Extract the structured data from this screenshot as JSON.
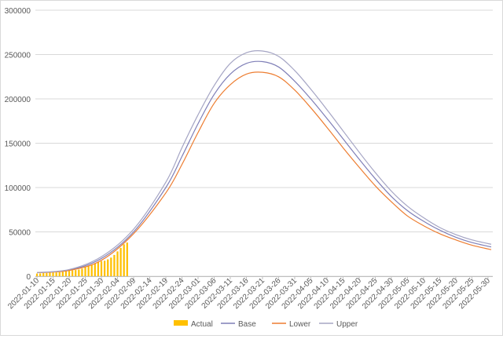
{
  "chart_data": {
    "type": "bar+line",
    "title": "",
    "xlabel": "",
    "ylabel": "",
    "ylim": [
      0,
      300000
    ],
    "y_ticks": [
      0,
      50000,
      100000,
      150000,
      200000,
      250000,
      300000
    ],
    "y_tick_labels": [
      "0",
      "50000",
      "100000",
      "150000",
      "200000",
      "250000",
      "300000"
    ],
    "x_start": "2022-01-10",
    "x_end": "2022-05-31",
    "x_tick_labels": [
      "2022-01-10",
      "2022-01-15",
      "2022-01-20",
      "2022-01-25",
      "2022-01-30",
      "2022-02-04",
      "2022-02-09",
      "2022-02-14",
      "2022-02-19",
      "2022-02-24",
      "2022-03-01",
      "2022-03-06",
      "2022-03-11",
      "2022-03-16",
      "2022-03-21",
      "2022-03-26",
      "2022-03-31",
      "2022-04-05",
      "2022-04-10",
      "2022-04-15",
      "2022-04-20",
      "2022-04-25",
      "2022-04-30",
      "2022-05-05",
      "2022-05-10",
      "2022-05-15",
      "2022-05-20",
      "2022-05-25",
      "2022-05-30"
    ],
    "grid": "horizontal",
    "legend_position": "bottom",
    "actual": {
      "name": "Actual",
      "color": "#ffc000",
      "dates": [
        "2022-01-10",
        "2022-01-11",
        "2022-01-12",
        "2022-01-13",
        "2022-01-14",
        "2022-01-15",
        "2022-01-16",
        "2022-01-17",
        "2022-01-18",
        "2022-01-19",
        "2022-01-20",
        "2022-01-21",
        "2022-01-22",
        "2022-01-23",
        "2022-01-24",
        "2022-01-25",
        "2022-01-26",
        "2022-01-27",
        "2022-01-28",
        "2022-01-29",
        "2022-01-30",
        "2022-01-31",
        "2022-02-01",
        "2022-02-02",
        "2022-02-03",
        "2022-02-04",
        "2022-02-05",
        "2022-02-06",
        "2022-02-07"
      ],
      "values": [
        3000,
        3200,
        3500,
        3700,
        4000,
        4200,
        4300,
        4500,
        5000,
        5400,
        6000,
        6500,
        7000,
        7500,
        8500,
        11000,
        12000,
        13000,
        14500,
        16000,
        17000,
        17500,
        19000,
        21000,
        24000,
        28000,
        32000,
        36000,
        38000
      ]
    },
    "series": [
      {
        "name": "Base",
        "color": "#7f7fb7",
        "x": [
          "2022-01-10",
          "2022-01-20",
          "2022-01-30",
          "2022-02-09",
          "2022-02-19",
          "2022-02-24",
          "2022-03-01",
          "2022-03-06",
          "2022-03-11",
          "2022-03-16",
          "2022-03-21",
          "2022-03-26",
          "2022-03-31",
          "2022-04-05",
          "2022-04-10",
          "2022-04-15",
          "2022-04-20",
          "2022-04-25",
          "2022-04-30",
          "2022-05-05",
          "2022-05-10",
          "2022-05-15",
          "2022-05-20",
          "2022-05-25",
          "2022-05-31"
        ],
        "values": [
          4000,
          7000,
          20000,
          50000,
          100000,
          135000,
          172000,
          205000,
          228000,
          240000,
          242000,
          236000,
          220000,
          200000,
          178000,
          155000,
          132000,
          110000,
          90000,
          74000,
          62000,
          52000,
          44000,
          38000,
          33000
        ]
      },
      {
        "name": "Lower",
        "color": "#ed7d31",
        "x": [
          "2022-01-10",
          "2022-01-20",
          "2022-01-30",
          "2022-02-09",
          "2022-02-19",
          "2022-02-24",
          "2022-03-01",
          "2022-03-06",
          "2022-03-11",
          "2022-03-16",
          "2022-03-21",
          "2022-03-26",
          "2022-03-31",
          "2022-04-05",
          "2022-04-10",
          "2022-04-15",
          "2022-04-20",
          "2022-04-25",
          "2022-04-30",
          "2022-05-05",
          "2022-05-10",
          "2022-05-15",
          "2022-05-20",
          "2022-05-25",
          "2022-05-31"
        ],
        "values": [
          4000,
          6500,
          18000,
          48000,
          94000,
          126000,
          162000,
          195000,
          216000,
          228000,
          230000,
          225000,
          210000,
          190000,
          168000,
          145000,
          123000,
          102000,
          84000,
          68000,
          57000,
          48000,
          41000,
          35000,
          30000
        ]
      },
      {
        "name": "Upper",
        "color": "#a5a5c4",
        "x": [
          "2022-01-10",
          "2022-01-20",
          "2022-01-30",
          "2022-02-09",
          "2022-02-19",
          "2022-02-24",
          "2022-03-01",
          "2022-03-06",
          "2022-03-11",
          "2022-03-16",
          "2022-03-21",
          "2022-03-26",
          "2022-03-31",
          "2022-04-05",
          "2022-04-10",
          "2022-04-15",
          "2022-04-20",
          "2022-04-25",
          "2022-04-30",
          "2022-05-05",
          "2022-05-10",
          "2022-05-15",
          "2022-05-20",
          "2022-05-25",
          "2022-05-31"
        ],
        "values": [
          4200,
          7500,
          22000,
          53000,
          106000,
          145000,
          182000,
          215000,
          240000,
          252000,
          254000,
          248000,
          232000,
          211000,
          188000,
          164000,
          140000,
          117000,
          96000,
          79000,
          66000,
          55000,
          47000,
          41000,
          36000
        ]
      }
    ]
  },
  "legend": [
    {
      "label": "Actual",
      "kind": "bar",
      "color": "#ffc000"
    },
    {
      "label": "Base",
      "kind": "line",
      "color": "#7f7fb7"
    },
    {
      "label": "Lower",
      "kind": "line",
      "color": "#ed7d31"
    },
    {
      "label": "Upper",
      "kind": "line",
      "color": "#a5a5c4"
    }
  ]
}
